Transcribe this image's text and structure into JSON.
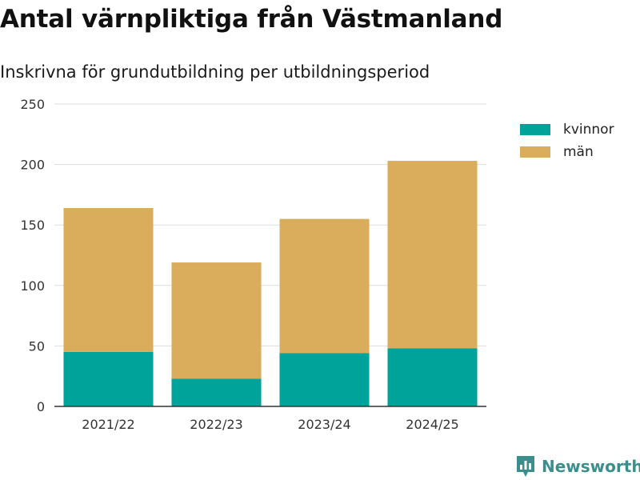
{
  "colors": {
    "kvinnor": "#00a39a",
    "man": "#daad5c",
    "grid": "#dddddd",
    "axis": "#333333",
    "brand": "#3a8f8d"
  },
  "brand": {
    "name": "Newsworthy",
    "icon": "newsworthy-logo-icon"
  },
  "chart_data": {
    "type": "bar",
    "stacked": true,
    "title": "Antal värnpliktiga från Västmanland",
    "subtitle": "Inskrivna för grundutbildning per utbildningsperiod",
    "categories": [
      "2021/22",
      "2022/23",
      "2023/24",
      "2024/25"
    ],
    "series": [
      {
        "name": "kvinnor",
        "color": "#00a39a",
        "values": [
          45,
          23,
          44,
          48
        ]
      },
      {
        "name": "män",
        "color": "#daad5c",
        "values": [
          119,
          96,
          111,
          155
        ]
      }
    ],
    "ylim": [
      0,
      250
    ],
    "yticks": [
      "0",
      "50",
      "100",
      "150",
      "200",
      "250"
    ],
    "ytick_values": [
      0,
      50,
      100,
      150,
      200,
      250
    ],
    "grid": true,
    "legend_position": "right"
  }
}
